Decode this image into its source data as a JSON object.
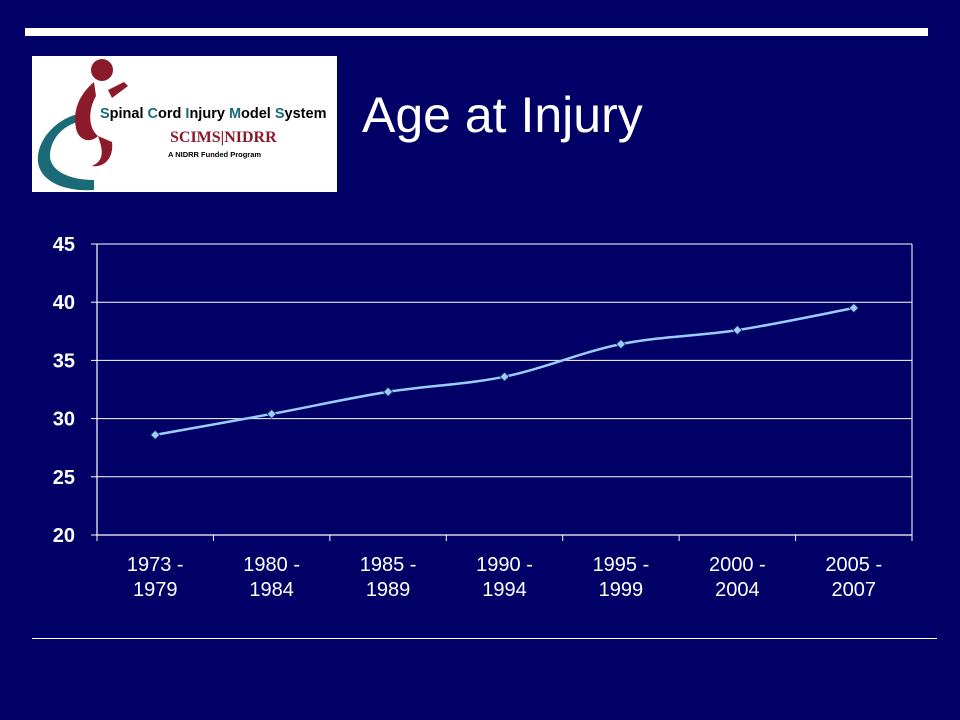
{
  "slide": {
    "title": "Age at Injury"
  },
  "logo": {
    "name_letters": [
      {
        "text": "S",
        "cap": true
      },
      {
        "text": "pinal ",
        "cap": false
      },
      {
        "text": "C",
        "cap": true
      },
      {
        "text": "ord ",
        "cap": false
      },
      {
        "text": "I",
        "cap": true
      },
      {
        "text": "njury ",
        "cap": false
      },
      {
        "text": "M",
        "cap": true
      },
      {
        "text": "odel ",
        "cap": false
      },
      {
        "text": "S",
        "cap": true
      },
      {
        "text": "ystem",
        "cap": false
      }
    ],
    "subtitle": "SCIMS|NIDRR",
    "tagline": "A NIDRR Funded Program"
  },
  "colors": {
    "background": "#000066",
    "text": "#ffffff",
    "series_line": "#99ccff",
    "gridline": "#ffffff"
  },
  "chart_data": {
    "type": "line",
    "title": "",
    "xlabel": "",
    "ylabel": "",
    "categories": [
      [
        "1973 -",
        "1979"
      ],
      [
        "1980 -",
        "1984"
      ],
      [
        "1985 -",
        "1989"
      ],
      [
        "1990 -",
        "1994"
      ],
      [
        "1995 -",
        "1999"
      ],
      [
        "2000 -",
        "2004"
      ],
      [
        "2005 -",
        "2007"
      ]
    ],
    "series": [
      {
        "values": [
          28.6,
          30.4,
          32.3,
          33.6,
          36.4,
          37.6,
          39.5
        ]
      }
    ],
    "ylim": [
      20,
      45
    ],
    "yticks": [
      20,
      25,
      30,
      35,
      40,
      45
    ],
    "grid": true,
    "legend": "none",
    "marker": "diamond",
    "smoothed": true
  }
}
